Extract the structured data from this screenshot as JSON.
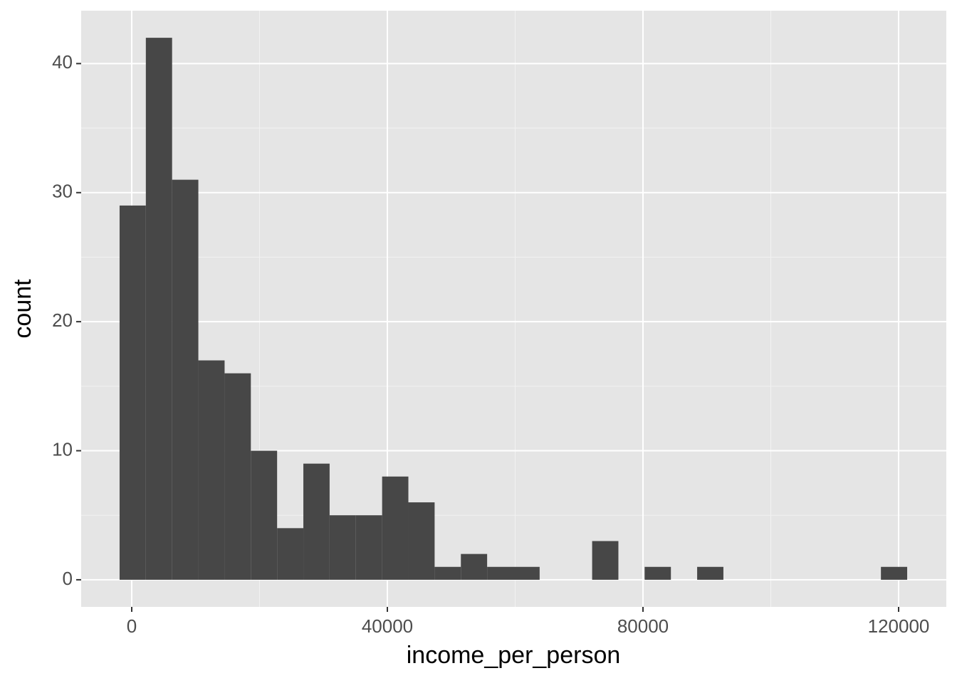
{
  "chart_data": {
    "type": "histogram",
    "x_label": "income_per_person",
    "y_label": "count",
    "bins": [
      -1900,
      2208,
      6316,
      10424,
      14532,
      18640,
      22748,
      26856,
      30964,
      35072,
      39180,
      43288,
      47396,
      51504,
      55612,
      59720,
      63828,
      67936,
      72044,
      76152,
      80260,
      84368,
      88476,
      92584,
      96692,
      100800,
      104908,
      109016,
      113124,
      117232,
      121340
    ],
    "values": [
      29,
      42,
      31,
      17,
      16,
      10,
      4,
      9,
      5,
      5,
      8,
      6,
      1,
      2,
      1,
      1,
      0,
      0,
      3,
      0,
      1,
      0,
      1,
      0,
      0,
      0,
      0,
      0,
      0,
      1
    ],
    "color": "#474747",
    "xlim": [
      -7911,
      127465
    ],
    "xticks": [
      0,
      40000,
      80000,
      120000
    ],
    "ylim": [
      -2.1,
      44.1
    ],
    "yticks": [
      0,
      10,
      20,
      30,
      40
    ],
    "grid": true
  }
}
